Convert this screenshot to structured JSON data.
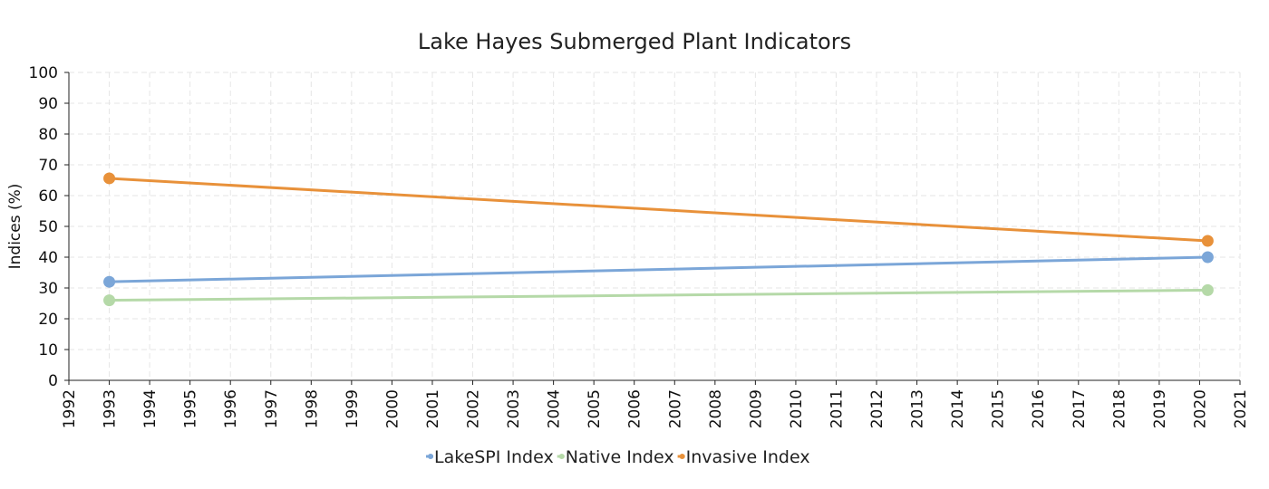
{
  "chart_data": {
    "type": "line",
    "title": "Lake Hayes Submerged Plant Indicators",
    "xlabel": "",
    "ylabel": "Indices (%)",
    "xlim": [
      1992,
      2021
    ],
    "ylim": [
      0,
      100
    ],
    "x_ticks": [
      "1992",
      "1993",
      "1994",
      "1995",
      "1996",
      "1997",
      "1998",
      "1999",
      "2000",
      "2001",
      "2002",
      "2003",
      "2004",
      "2005",
      "2006",
      "2007",
      "2008",
      "2009",
      "2010",
      "2011",
      "2012",
      "2013",
      "2014",
      "2015",
      "2016",
      "2017",
      "2018",
      "2019",
      "2020",
      "2021"
    ],
    "y_ticks": [
      "0",
      "10",
      "20",
      "30",
      "40",
      "50",
      "60",
      "70",
      "80",
      "90",
      "100"
    ],
    "grid": true,
    "legend_position": "bottom",
    "series": [
      {
        "name": "LakeSPI Index",
        "color": "#7ba6d8",
        "x": [
          1993.0,
          2020.2
        ],
        "y": [
          32,
          40
        ]
      },
      {
        "name": "Native Index",
        "color": "#b5d9a8",
        "x": [
          1993.0,
          2020.2
        ],
        "y": [
          26,
          29.3
        ]
      },
      {
        "name": "Invasive Index",
        "color": "#e8913a",
        "x": [
          1993.0,
          2020.2
        ],
        "y": [
          65.6,
          45.3
        ]
      }
    ]
  }
}
